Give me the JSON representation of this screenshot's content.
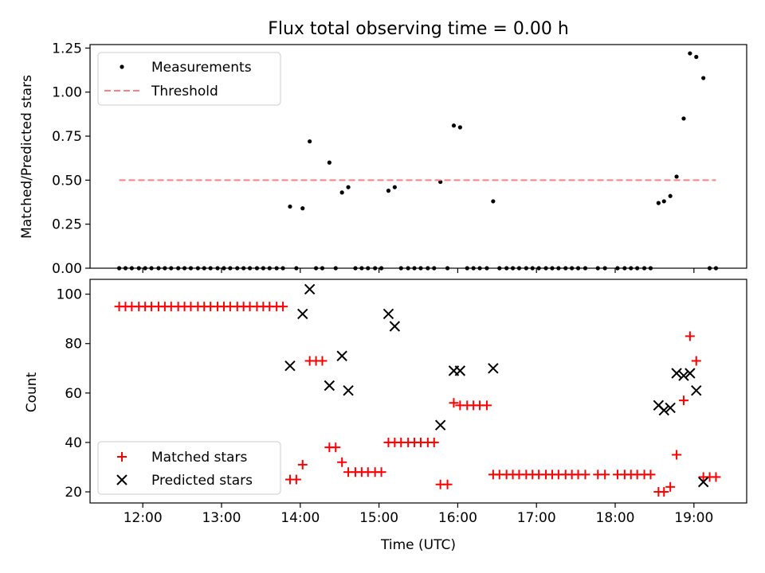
{
  "chart_data": [
    {
      "type": "scatter",
      "title": "Flux total observing time = 0.00 h",
      "xlabel": "",
      "ylabel": "Matched/Predicted stars",
      "xlim": [
        11.33,
        19.67
      ],
      "ylim": [
        0,
        1.27
      ],
      "yticks": [
        0.0,
        0.25,
        0.5,
        0.75,
        1.0,
        1.25
      ],
      "ytick_labels": [
        "0.00",
        "0.25",
        "0.50",
        "0.75",
        "1.00",
        "1.25"
      ],
      "grid": false,
      "legend": {
        "position": "top-left",
        "entries": [
          "Measurements",
          "Threshold"
        ]
      },
      "series": [
        {
          "name": "Measurements",
          "color": "#000000",
          "marker": "dot",
          "points": [
            [
              11.7,
              0
            ],
            [
              11.78,
              0
            ],
            [
              11.86,
              0
            ],
            [
              11.95,
              0
            ],
            [
              12.03,
              0
            ],
            [
              12.11,
              0
            ],
            [
              12.2,
              0
            ],
            [
              12.28,
              0
            ],
            [
              12.36,
              0
            ],
            [
              12.45,
              0
            ],
            [
              12.53,
              0
            ],
            [
              12.61,
              0
            ],
            [
              12.7,
              0
            ],
            [
              12.78,
              0
            ],
            [
              12.86,
              0
            ],
            [
              12.95,
              0
            ],
            [
              13.03,
              0
            ],
            [
              13.11,
              0
            ],
            [
              13.2,
              0
            ],
            [
              13.28,
              0
            ],
            [
              13.36,
              0
            ],
            [
              13.45,
              0
            ],
            [
              13.53,
              0
            ],
            [
              13.61,
              0
            ],
            [
              13.7,
              0
            ],
            [
              13.78,
              0
            ],
            [
              13.87,
              0.35
            ],
            [
              13.95,
              0
            ],
            [
              14.03,
              0.34
            ],
            [
              14.12,
              0.72
            ],
            [
              14.2,
              0
            ],
            [
              14.28,
              0
            ],
            [
              14.37,
              0.6
            ],
            [
              14.45,
              0
            ],
            [
              14.53,
              0.43
            ],
            [
              14.61,
              0.46
            ],
            [
              14.7,
              0
            ],
            [
              14.78,
              0
            ],
            [
              14.86,
              0
            ],
            [
              14.95,
              0
            ],
            [
              15.03,
              0
            ],
            [
              15.12,
              0.44
            ],
            [
              15.2,
              0.46
            ],
            [
              15.28,
              0
            ],
            [
              15.37,
              0
            ],
            [
              15.45,
              0
            ],
            [
              15.53,
              0
            ],
            [
              15.62,
              0
            ],
            [
              15.7,
              0
            ],
            [
              15.78,
              0.49
            ],
            [
              15.87,
              0
            ],
            [
              15.95,
              0.81
            ],
            [
              16.03,
              0.8
            ],
            [
              16.12,
              0
            ],
            [
              16.2,
              0
            ],
            [
              16.28,
              0
            ],
            [
              16.37,
              0
            ],
            [
              16.45,
              0.38
            ],
            [
              16.53,
              0
            ],
            [
              16.62,
              0
            ],
            [
              16.7,
              0
            ],
            [
              16.78,
              0
            ],
            [
              16.87,
              0
            ],
            [
              16.95,
              0
            ],
            [
              17.03,
              0
            ],
            [
              17.12,
              0
            ],
            [
              17.2,
              0
            ],
            [
              17.28,
              0
            ],
            [
              17.37,
              0
            ],
            [
              17.45,
              0
            ],
            [
              17.53,
              0
            ],
            [
              17.62,
              0
            ],
            [
              17.78,
              0
            ],
            [
              17.87,
              0
            ],
            [
              18.03,
              0
            ],
            [
              18.12,
              0
            ],
            [
              18.2,
              0
            ],
            [
              18.28,
              0
            ],
            [
              18.37,
              0
            ],
            [
              18.45,
              0
            ],
            [
              18.55,
              0.37
            ],
            [
              18.62,
              0.38
            ],
            [
              18.7,
              0.41
            ],
            [
              18.78,
              0.52
            ],
            [
              18.87,
              0.85
            ],
            [
              18.95,
              1.22
            ],
            [
              19.03,
              1.2
            ],
            [
              19.12,
              1.08
            ],
            [
              19.2,
              0
            ],
            [
              19.28,
              0
            ]
          ]
        },
        {
          "name": "Threshold",
          "color": "#ff7f7f",
          "style": "dashed",
          "points": [
            [
              11.7,
              0.5
            ],
            [
              19.28,
              0.5
            ]
          ]
        }
      ]
    },
    {
      "type": "scatter",
      "title": "",
      "xlabel": "Time (UTC)",
      "ylabel": "Count",
      "xlim": [
        11.33,
        19.67
      ],
      "ylim": [
        15.5,
        106
      ],
      "xticks": [
        12,
        13,
        14,
        15,
        16,
        17,
        18,
        19
      ],
      "xtick_labels": [
        "12:00",
        "13:00",
        "14:00",
        "15:00",
        "16:00",
        "17:00",
        "18:00",
        "19:00"
      ],
      "yticks": [
        20,
        40,
        60,
        80,
        100
      ],
      "ytick_labels": [
        "20",
        "40",
        "60",
        "80",
        "100"
      ],
      "grid": false,
      "legend": {
        "position": "bottom-left",
        "entries": [
          "Matched stars",
          "Predicted stars"
        ]
      },
      "series": [
        {
          "name": "Matched stars",
          "color": "#ff0000",
          "marker": "plus",
          "points": [
            [
              11.7,
              95
            ],
            [
              11.78,
              95
            ],
            [
              11.86,
              95
            ],
            [
              11.95,
              95
            ],
            [
              12.03,
              95
            ],
            [
              12.11,
              95
            ],
            [
              12.2,
              95
            ],
            [
              12.28,
              95
            ],
            [
              12.36,
              95
            ],
            [
              12.45,
              95
            ],
            [
              12.53,
              95
            ],
            [
              12.61,
              95
            ],
            [
              12.7,
              95
            ],
            [
              12.78,
              95
            ],
            [
              12.86,
              95
            ],
            [
              12.95,
              95
            ],
            [
              13.03,
              95
            ],
            [
              13.11,
              95
            ],
            [
              13.2,
              95
            ],
            [
              13.28,
              95
            ],
            [
              13.36,
              95
            ],
            [
              13.45,
              95
            ],
            [
              13.53,
              95
            ],
            [
              13.61,
              95
            ],
            [
              13.7,
              95
            ],
            [
              13.78,
              95
            ],
            [
              13.87,
              25
            ],
            [
              13.95,
              25
            ],
            [
              14.03,
              31
            ],
            [
              14.12,
              73
            ],
            [
              14.2,
              73
            ],
            [
              14.28,
              73
            ],
            [
              14.37,
              38
            ],
            [
              14.45,
              38
            ],
            [
              14.53,
              32
            ],
            [
              14.61,
              28
            ],
            [
              14.7,
              28
            ],
            [
              14.78,
              28
            ],
            [
              14.86,
              28
            ],
            [
              14.95,
              28
            ],
            [
              15.03,
              28
            ],
            [
              15.12,
              40
            ],
            [
              15.2,
              40
            ],
            [
              15.28,
              40
            ],
            [
              15.37,
              40
            ],
            [
              15.45,
              40
            ],
            [
              15.53,
              40
            ],
            [
              15.62,
              40
            ],
            [
              15.7,
              40
            ],
            [
              15.78,
              23
            ],
            [
              15.87,
              23
            ],
            [
              15.95,
              56
            ],
            [
              16.03,
              55
            ],
            [
              16.12,
              55
            ],
            [
              16.2,
              55
            ],
            [
              16.28,
              55
            ],
            [
              16.37,
              55
            ],
            [
              16.45,
              27
            ],
            [
              16.53,
              27
            ],
            [
              16.62,
              27
            ],
            [
              16.7,
              27
            ],
            [
              16.78,
              27
            ],
            [
              16.87,
              27
            ],
            [
              16.95,
              27
            ],
            [
              17.03,
              27
            ],
            [
              17.12,
              27
            ],
            [
              17.2,
              27
            ],
            [
              17.28,
              27
            ],
            [
              17.37,
              27
            ],
            [
              17.45,
              27
            ],
            [
              17.53,
              27
            ],
            [
              17.62,
              27
            ],
            [
              17.78,
              27
            ],
            [
              17.87,
              27
            ],
            [
              18.03,
              27
            ],
            [
              18.12,
              27
            ],
            [
              18.2,
              27
            ],
            [
              18.28,
              27
            ],
            [
              18.37,
              27
            ],
            [
              18.45,
              27
            ],
            [
              18.55,
              20
            ],
            [
              18.62,
              20
            ],
            [
              18.7,
              22
            ],
            [
              18.78,
              35
            ],
            [
              18.87,
              57
            ],
            [
              18.95,
              83
            ],
            [
              19.03,
              73
            ],
            [
              19.12,
              26
            ],
            [
              19.2,
              26
            ],
            [
              19.28,
              26
            ]
          ]
        },
        {
          "name": "Predicted stars",
          "color": "#000000",
          "marker": "x",
          "points": [
            [
              13.87,
              71
            ],
            [
              14.03,
              92
            ],
            [
              14.12,
              102
            ],
            [
              14.37,
              63
            ],
            [
              14.53,
              75
            ],
            [
              14.61,
              61
            ],
            [
              15.12,
              92
            ],
            [
              15.2,
              87
            ],
            [
              15.78,
              47
            ],
            [
              15.95,
              69
            ],
            [
              16.03,
              69
            ],
            [
              16.45,
              70
            ],
            [
              18.55,
              55
            ],
            [
              18.62,
              53
            ],
            [
              18.7,
              54
            ],
            [
              18.78,
              68
            ],
            [
              18.87,
              67
            ],
            [
              18.95,
              68
            ],
            [
              19.03,
              61
            ],
            [
              19.12,
              24
            ]
          ]
        }
      ]
    }
  ]
}
